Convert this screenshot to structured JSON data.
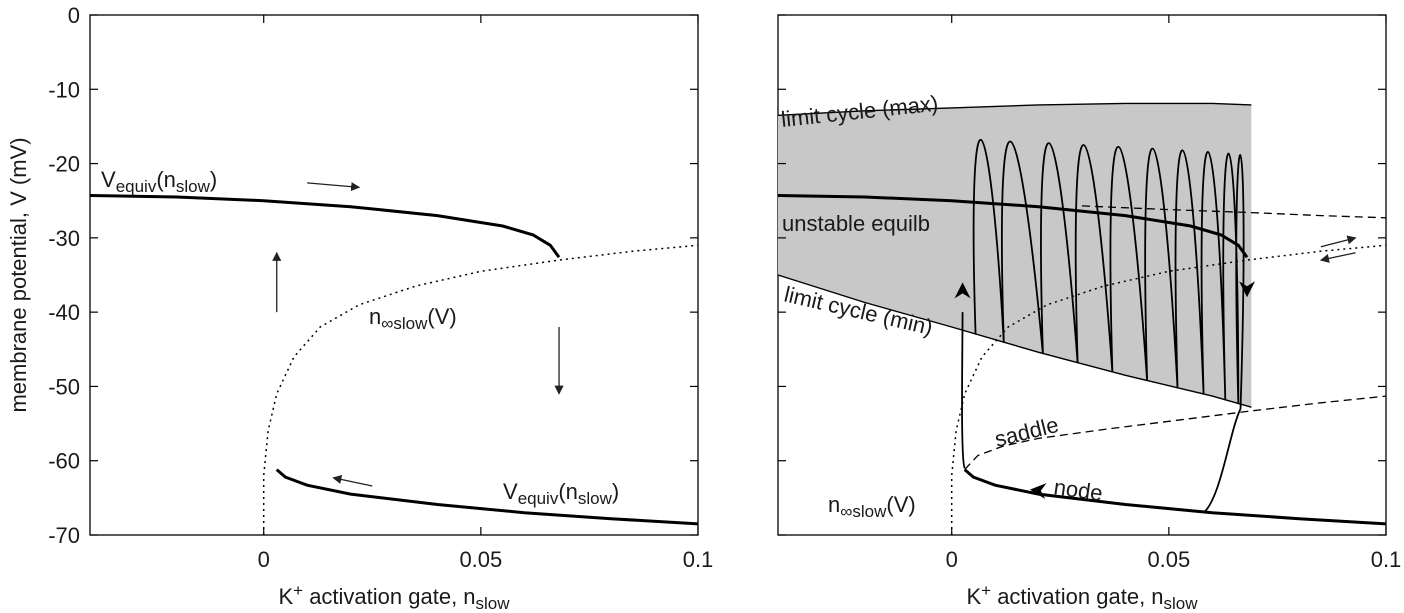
{
  "figure": {
    "y_axis_label": "membrane potential, V (mV)",
    "x_axis_label_main": "K",
    "x_axis_label_sup": "+",
    "x_axis_label_mid": " activation gate, n",
    "x_axis_label_sub": "slow"
  },
  "chart_data": [
    {
      "type": "line",
      "panel": "left",
      "xlim": [
        -0.04,
        0.1
      ],
      "ylim": [
        -70,
        0
      ],
      "xticks": [
        0,
        0.05,
        0.1
      ],
      "xtick_labels": [
        "0",
        "0.05",
        "0.1"
      ],
      "yticks": [
        0,
        -10,
        -20,
        -30,
        -40,
        -50,
        -60,
        -70
      ],
      "ytick_labels": [
        "0",
        "-10",
        "-20",
        "-30",
        "-40",
        "-50",
        "-60",
        "-70"
      ],
      "grid": false,
      "series": [
        {
          "name": "Vequiv(nslow)",
          "style": "solid",
          "x": [
            -0.04,
            -0.02,
            0.0,
            0.02,
            0.04,
            0.055,
            0.062,
            0.066,
            0.068
          ],
          "y": [
            -24.3,
            -24.5,
            -25.0,
            -25.8,
            -27.0,
            -28.4,
            -29.6,
            -31.0,
            -32.6
          ]
        },
        {
          "name": "Vequiv(nslow)",
          "style": "solid",
          "x": [
            0.003,
            0.005,
            0.01,
            0.02,
            0.04,
            0.06,
            0.08,
            0.1
          ],
          "y": [
            -61.2,
            -62.2,
            -63.3,
            -64.5,
            -65.9,
            -67.0,
            -67.8,
            -68.5
          ]
        },
        {
          "name": "n∞slow(V)",
          "style": "dotted",
          "x": [
            0.0,
            0.0,
            0.001,
            0.003,
            0.007,
            0.013,
            0.022,
            0.035,
            0.05,
            0.068,
            0.085,
            0.1
          ],
          "y": [
            -70,
            -62,
            -56,
            -51,
            -46,
            -42,
            -39,
            -36.5,
            -34.5,
            -33.0,
            -31.8,
            -31.0
          ]
        }
      ],
      "labels": {
        "upper_curve_main": "V",
        "upper_curve_sub": "equiv",
        "upper_curve_paren_open": "(n",
        "upper_curve_paren_sub": "slow",
        "upper_curve_paren_close": ")",
        "lower_curve_main": "V",
        "lower_curve_sub": "equiv",
        "lower_curve_paren_open": "(n",
        "lower_curve_paren_sub": "slow",
        "lower_curve_paren_close": ")",
        "nullcline_main": "n",
        "nullcline_sub": "∞slow",
        "nullcline_tail": "(V)"
      },
      "arrows": [
        {
          "direction": "right",
          "x1": 0.01,
          "y1": -22.6,
          "x2": 0.022,
          "y2": -23.2
        },
        {
          "direction": "up",
          "x1": 0.003,
          "y1": -40,
          "x2": 0.003,
          "y2": -32
        },
        {
          "direction": "down",
          "x1": 0.068,
          "y1": -42,
          "x2": 0.068,
          "y2": -51
        },
        {
          "direction": "left",
          "x1": 0.025,
          "y1": -63.4,
          "x2": 0.016,
          "y2": -62.3
        }
      ]
    },
    {
      "type": "line",
      "panel": "right",
      "xlim": [
        -0.04,
        0.1
      ],
      "ylim": [
        -70,
        0
      ],
      "xticks": [
        0,
        0.05,
        0.1
      ],
      "xtick_labels": [
        "0",
        "0.05",
        "0.1"
      ],
      "yticks": [
        0,
        -10,
        -20,
        -30,
        -40,
        -50,
        -60,
        -70
      ],
      "grid": false,
      "band": {
        "fill": "#c8c8c8",
        "x": [
          -0.04,
          -0.02,
          0.0,
          0.02,
          0.04,
          0.06,
          0.069
        ],
        "upper": [
          -13.5,
          -12.9,
          -12.5,
          -12.1,
          -11.9,
          -11.9,
          -12.1
        ],
        "lower": [
          -35.0,
          -38.7,
          -42.0,
          -45.4,
          -48.5,
          -51.3,
          -52.8
        ]
      },
      "series": [
        {
          "name": "limit cycle (max)",
          "style": "solid",
          "x": [
            -0.04,
            -0.02,
            0.0,
            0.02,
            0.04,
            0.06,
            0.069
          ],
          "y": [
            -13.5,
            -12.9,
            -12.5,
            -12.1,
            -11.9,
            -11.9,
            -12.1
          ]
        },
        {
          "name": "limit cycle (min)",
          "style": "solid",
          "x": [
            -0.04,
            -0.02,
            0.0,
            0.02,
            0.04,
            0.06,
            0.069
          ],
          "y": [
            -35.0,
            -38.7,
            -42.0,
            -45.4,
            -48.5,
            -51.3,
            -52.8
          ]
        },
        {
          "name": "unstable equilb",
          "style": "solid-thick",
          "x": [
            -0.04,
            -0.02,
            0.0,
            0.02,
            0.04,
            0.055,
            0.062,
            0.066,
            0.068
          ],
          "y": [
            -24.3,
            -24.5,
            -25.0,
            -25.8,
            -27.0,
            -28.4,
            -29.6,
            -31.0,
            -32.6
          ]
        },
        {
          "name": "node",
          "style": "solid-thick",
          "x": [
            0.003,
            0.005,
            0.01,
            0.02,
            0.04,
            0.06,
            0.08,
            0.1
          ],
          "y": [
            -61.2,
            -62.2,
            -63.3,
            -64.5,
            -65.9,
            -67.0,
            -67.8,
            -68.5
          ]
        },
        {
          "name": "saddle",
          "style": "dashed",
          "x": [
            0.003,
            0.006,
            0.012,
            0.02,
            0.035,
            0.05,
            0.069,
            0.085,
            0.1
          ],
          "y": [
            -61.2,
            -59.3,
            -58.0,
            -57.0,
            -55.8,
            -54.7,
            -53.3,
            -52.2,
            -51.3
          ]
        },
        {
          "name": "",
          "style": "dashed",
          "x": [
            0.03,
            0.05,
            0.069,
            0.085,
            0.1
          ],
          "y": [
            -25.7,
            -26.2,
            -26.6,
            -27.0,
            -27.3
          ]
        },
        {
          "name": "n∞slow(V)",
          "style": "dotted",
          "x": [
            0.0,
            0.0,
            0.001,
            0.003,
            0.007,
            0.013,
            0.022,
            0.035,
            0.05,
            0.068,
            0.085,
            0.1
          ],
          "y": [
            -70,
            -62,
            -56,
            -51,
            -46,
            -42,
            -39,
            -36.5,
            -34.5,
            -33.0,
            -31.8,
            -31.0
          ]
        }
      ],
      "labels": {
        "max": "limit cycle (max)",
        "unstable": "unstable equilb",
        "min": "limit cycle (min)",
        "saddle": "saddle",
        "node": "node",
        "nullcline_main": "n",
        "nullcline_sub": "∞slow",
        "nullcline_tail": "(V)"
      },
      "trajectory": {
        "spike_n": [
          0.006,
          0.0125,
          0.0215,
          0.0295,
          0.0375,
          0.0455,
          0.0525,
          0.0585,
          0.0635,
          0.0665
        ],
        "rest_start": [
          0.058,
          -67.0
        ],
        "rest_end": [
          0.003,
          -61.0
        ],
        "jump_top_y": -40.0
      },
      "arrows": [
        {
          "direction": "right",
          "x1": 0.085,
          "y1": -31.2,
          "x2": 0.093,
          "y2": -30.0
        },
        {
          "direction": "left",
          "x1": 0.093,
          "y1": -32.0,
          "x2": 0.085,
          "y2": -33.0
        }
      ]
    }
  ]
}
